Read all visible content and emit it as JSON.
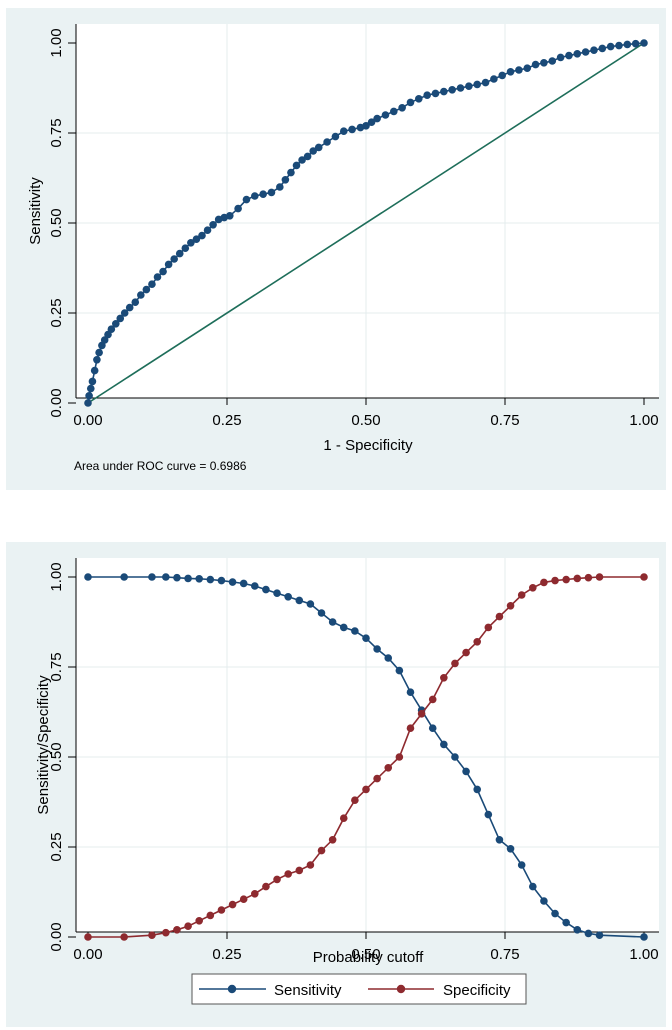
{
  "chart_data": [
    {
      "type": "line",
      "title": "",
      "xlabel": "1 - Specificity",
      "ylabel": "Sensitivity",
      "xlim": [
        0,
        1
      ],
      "ylim": [
        0,
        1
      ],
      "x_ticks": [
        "0.00",
        "0.25",
        "0.50",
        "0.75",
        "1.00"
      ],
      "y_ticks": [
        "0.00",
        "0.25",
        "0.50",
        "0.75",
        "1.00"
      ],
      "note": "Area under ROC curve = 0.6986",
      "colors": {
        "roc": "#1a4a78",
        "reference": "#1e6e5a"
      },
      "series": [
        {
          "name": "ROC curve",
          "x": [
            0,
            0.002,
            0.005,
            0.008,
            0.012,
            0.016,
            0.02,
            0.025,
            0.03,
            0.036,
            0.042,
            0.05,
            0.058,
            0.066,
            0.075,
            0.085,
            0.095,
            0.105,
            0.115,
            0.125,
            0.135,
            0.145,
            0.155,
            0.165,
            0.175,
            0.185,
            0.195,
            0.205,
            0.215,
            0.225,
            0.235,
            0.245,
            0.255,
            0.27,
            0.285,
            0.3,
            0.315,
            0.33,
            0.345,
            0.355,
            0.365,
            0.375,
            0.385,
            0.395,
            0.405,
            0.415,
            0.43,
            0.445,
            0.46,
            0.475,
            0.49,
            0.5,
            0.51,
            0.52,
            0.535,
            0.55,
            0.565,
            0.58,
            0.595,
            0.61,
            0.625,
            0.64,
            0.655,
            0.67,
            0.685,
            0.7,
            0.715,
            0.73,
            0.745,
            0.76,
            0.775,
            0.79,
            0.805,
            0.82,
            0.835,
            0.85,
            0.865,
            0.88,
            0.895,
            0.91,
            0.925,
            0.94,
            0.955,
            0.97,
            0.985,
            1.0
          ],
          "y": [
            0,
            0.02,
            0.04,
            0.06,
            0.09,
            0.12,
            0.14,
            0.16,
            0.175,
            0.19,
            0.205,
            0.22,
            0.235,
            0.25,
            0.265,
            0.28,
            0.3,
            0.315,
            0.33,
            0.35,
            0.365,
            0.385,
            0.4,
            0.415,
            0.43,
            0.445,
            0.455,
            0.465,
            0.48,
            0.495,
            0.51,
            0.515,
            0.52,
            0.54,
            0.565,
            0.575,
            0.58,
            0.585,
            0.6,
            0.62,
            0.64,
            0.66,
            0.675,
            0.685,
            0.7,
            0.71,
            0.725,
            0.74,
            0.755,
            0.76,
            0.765,
            0.77,
            0.78,
            0.79,
            0.8,
            0.81,
            0.82,
            0.835,
            0.845,
            0.855,
            0.86,
            0.865,
            0.87,
            0.875,
            0.88,
            0.885,
            0.89,
            0.9,
            0.91,
            0.92,
            0.925,
            0.93,
            0.94,
            0.945,
            0.95,
            0.96,
            0.965,
            0.97,
            0.975,
            0.98,
            0.985,
            0.99,
            0.993,
            0.996,
            0.998,
            1.0
          ]
        },
        {
          "name": "Reference line",
          "x": [
            0,
            1
          ],
          "y": [
            0,
            1
          ]
        }
      ]
    },
    {
      "type": "line",
      "title": "",
      "xlabel": "Probability cutoff",
      "ylabel": "Sensitivity/Specificity",
      "xlim": [
        0,
        1
      ],
      "ylim": [
        0,
        1
      ],
      "x_ticks": [
        "0.00",
        "0.25",
        "0.50",
        "0.75",
        "1.00"
      ],
      "y_ticks": [
        "0.00",
        "0.25",
        "0.50",
        "0.75",
        "1.00"
      ],
      "legend_position": "bottom",
      "colors": {
        "sensitivity": "#1a4a78",
        "specificity": "#8e2a2f"
      },
      "series": [
        {
          "name": "Sensitivity",
          "x": [
            0,
            0.065,
            0.115,
            0.14,
            0.16,
            0.18,
            0.2,
            0.22,
            0.24,
            0.26,
            0.28,
            0.3,
            0.32,
            0.34,
            0.36,
            0.38,
            0.4,
            0.42,
            0.44,
            0.46,
            0.48,
            0.5,
            0.52,
            0.54,
            0.56,
            0.58,
            0.6,
            0.62,
            0.64,
            0.66,
            0.68,
            0.7,
            0.72,
            0.74,
            0.76,
            0.78,
            0.8,
            0.82,
            0.84,
            0.86,
            0.88,
            0.9,
            0.92,
            1.0
          ],
          "y": [
            1.0,
            1.0,
            1.0,
            1.0,
            0.998,
            0.996,
            0.995,
            0.993,
            0.99,
            0.986,
            0.982,
            0.975,
            0.965,
            0.955,
            0.945,
            0.935,
            0.925,
            0.9,
            0.875,
            0.86,
            0.85,
            0.83,
            0.8,
            0.775,
            0.74,
            0.68,
            0.63,
            0.58,
            0.535,
            0.5,
            0.46,
            0.41,
            0.34,
            0.27,
            0.245,
            0.2,
            0.14,
            0.1,
            0.065,
            0.04,
            0.02,
            0.01,
            0.005,
            0.0
          ]
        },
        {
          "name": "Specificity",
          "x": [
            0,
            0.065,
            0.115,
            0.14,
            0.16,
            0.18,
            0.2,
            0.22,
            0.24,
            0.26,
            0.28,
            0.3,
            0.32,
            0.34,
            0.36,
            0.38,
            0.4,
            0.42,
            0.44,
            0.46,
            0.48,
            0.5,
            0.52,
            0.54,
            0.56,
            0.58,
            0.6,
            0.62,
            0.64,
            0.66,
            0.68,
            0.7,
            0.72,
            0.74,
            0.76,
            0.78,
            0.8,
            0.82,
            0.84,
            0.86,
            0.88,
            0.9,
            0.92,
            1.0
          ],
          "y": [
            0,
            0,
            0.005,
            0.012,
            0.02,
            0.03,
            0.045,
            0.06,
            0.075,
            0.09,
            0.105,
            0.12,
            0.14,
            0.16,
            0.175,
            0.185,
            0.2,
            0.24,
            0.27,
            0.33,
            0.38,
            0.41,
            0.44,
            0.47,
            0.5,
            0.58,
            0.62,
            0.66,
            0.72,
            0.76,
            0.79,
            0.82,
            0.86,
            0.89,
            0.92,
            0.95,
            0.97,
            0.985,
            0.99,
            0.993,
            0.996,
            0.998,
            1.0,
            1.0
          ]
        }
      ]
    }
  ]
}
